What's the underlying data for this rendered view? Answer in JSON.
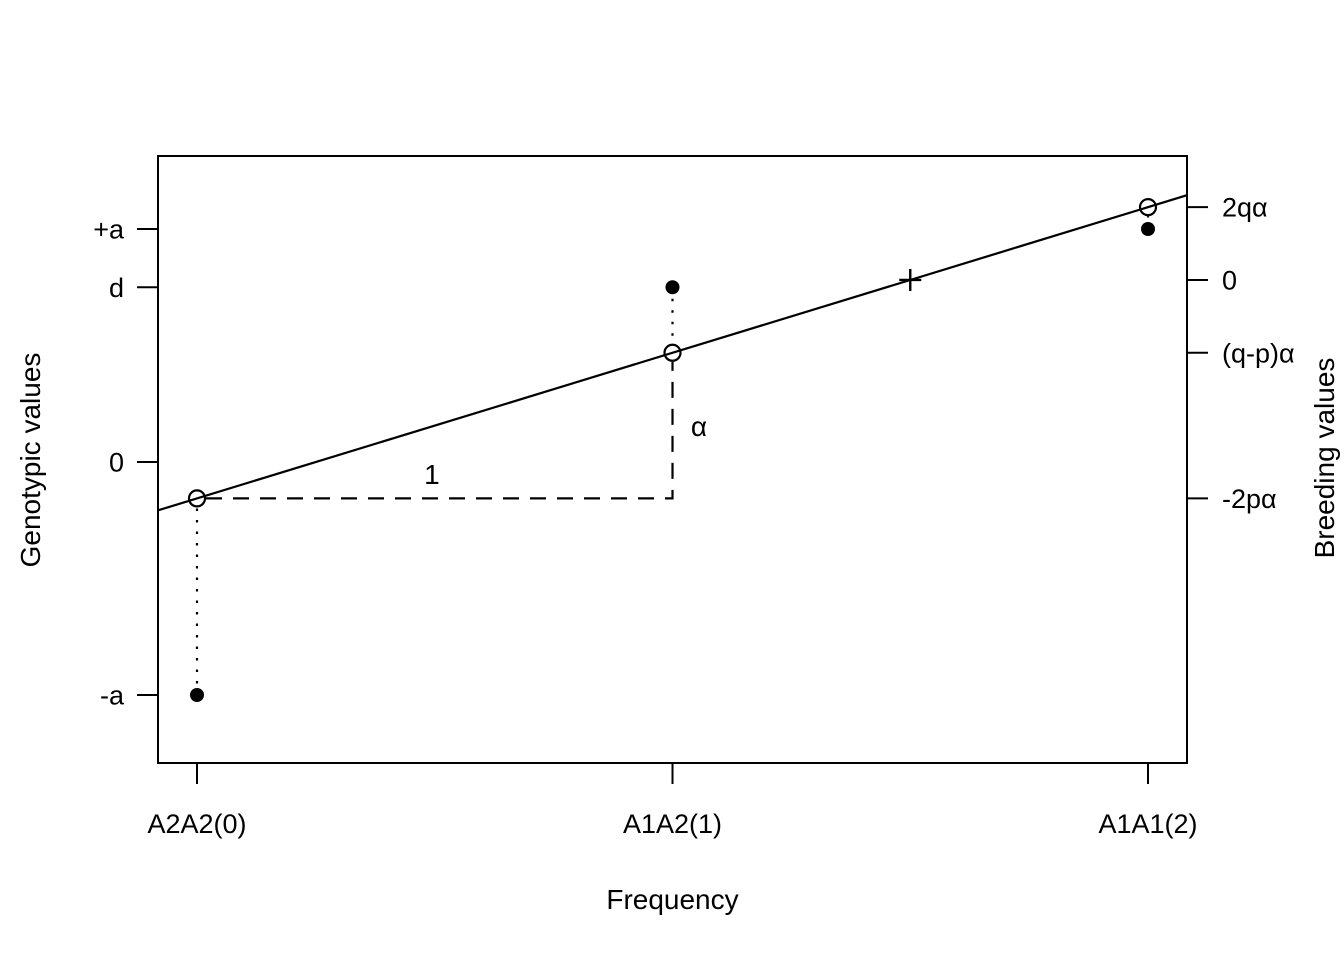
{
  "figure": {
    "background": "#ffffff",
    "ink": "#000000"
  },
  "chart_data": {
    "type": "scatter",
    "xlabel": "Frequency",
    "ylabel_left": "Genotypic values",
    "ylabel_right": "Breeding values",
    "xlim": [
      -0.082,
      2.082
    ],
    "ylim": [
      -1.2918,
      1.3133
    ],
    "grid": false,
    "legend": false,
    "x_ticks": [
      {
        "value": 0,
        "label": "A2A2(0)"
      },
      {
        "value": 1,
        "label": "A1A2(1)"
      },
      {
        "value": 2,
        "label": "A1A1(2)"
      }
    ],
    "y_ticks_left": [
      {
        "value": 1.0,
        "label": "+a"
      },
      {
        "value": 0.75,
        "label": "d"
      },
      {
        "value": 0.0,
        "label": "0"
      },
      {
        "value": -1.0,
        "label": "-a"
      }
    ],
    "y_ticks_right": [
      {
        "value": 1.09375,
        "label": "2qα"
      },
      {
        "value": 0.78125,
        "label": "0"
      },
      {
        "value": 0.46875,
        "label": "(q-p)α"
      },
      {
        "value": -0.15625,
        "label": "-2pα"
      }
    ],
    "series": [
      {
        "name": "genotypic-values",
        "marker": "filled-circle",
        "points": [
          {
            "x": 0,
            "y": -1.0
          },
          {
            "x": 1,
            "y": 0.75
          },
          {
            "x": 2,
            "y": 1.0
          }
        ]
      },
      {
        "name": "breeding-values-on-regression-line",
        "marker": "open-circle",
        "points": [
          {
            "x": 0,
            "y": -0.15625
          },
          {
            "x": 1,
            "y": 0.46875
          },
          {
            "x": 2,
            "y": 1.09375
          }
        ]
      },
      {
        "name": "population-mean",
        "marker": "plus",
        "points": [
          {
            "x": 1.5,
            "y": 0.78125
          }
        ]
      }
    ],
    "annotations": [
      {
        "label": "1",
        "x": 0.494,
        "y": -0.0944
      },
      {
        "label": "α",
        "x": 1.0557,
        "y": 0.1116
      }
    ]
  }
}
